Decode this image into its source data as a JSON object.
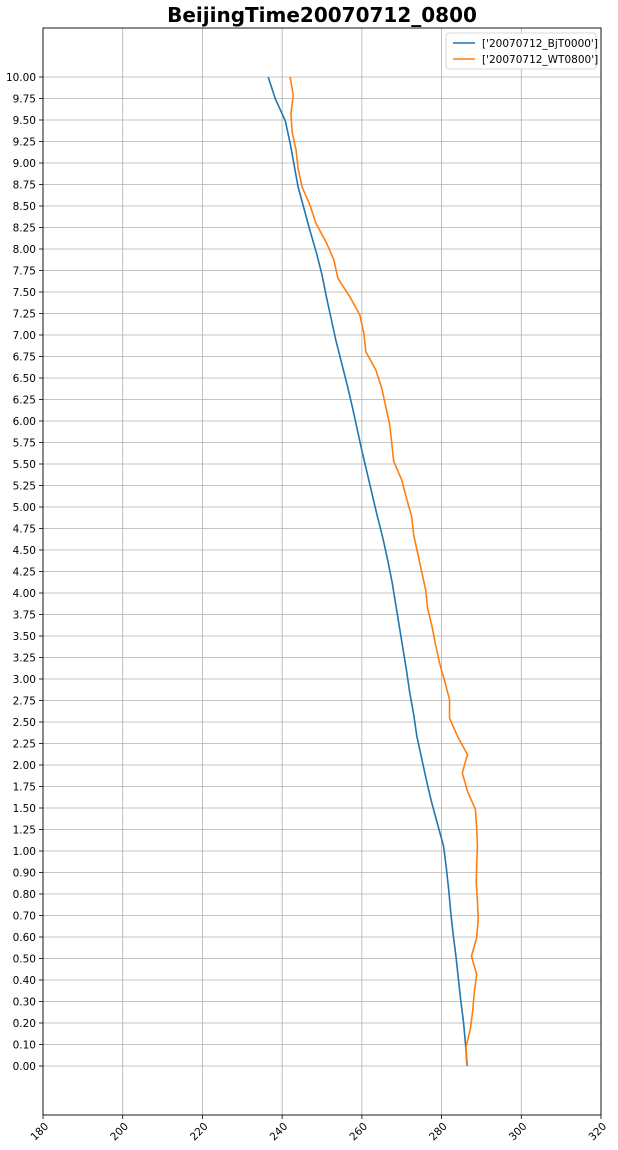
{
  "chart_data": {
    "type": "line",
    "title": "BeijingTime20070712_0800",
    "xlabel": "",
    "ylabel": "",
    "xlim": [
      180,
      320
    ],
    "x_ticks": [
      "180",
      "200",
      "220",
      "240",
      "260",
      "280",
      "300",
      "320"
    ],
    "y_tick_labels": [
      "0.00",
      "0.10",
      "0.20",
      "0.30",
      "0.40",
      "0.50",
      "0.60",
      "0.70",
      "0.80",
      "0.90",
      "1.00",
      "1.25",
      "1.50",
      "1.75",
      "2.00",
      "2.25",
      "2.50",
      "2.75",
      "3.00",
      "3.25",
      "3.50",
      "3.75",
      "4.00",
      "4.25",
      "4.50",
      "4.75",
      "5.00",
      "5.25",
      "5.50",
      "5.75",
      "6.00",
      "6.25",
      "6.50",
      "6.75",
      "7.00",
      "7.25",
      "7.50",
      "7.75",
      "8.00",
      "8.25",
      "8.50",
      "8.75",
      "9.00",
      "9.25",
      "9.50",
      "9.75",
      "10.00"
    ],
    "y_axis_note": "categorical levels, evenly spaced",
    "grid": true,
    "legend_position": "top-right",
    "series": [
      {
        "name": "['20070712_BjT0000']",
        "color": "#1f77b4",
        "x": [
          286.4,
          286.0,
          285.5,
          284.8,
          284.2,
          283.6,
          282.9,
          282.3,
          281.8,
          281.2,
          280.5,
          279.0,
          277.5,
          276.2,
          275.0,
          273.8,
          273.0,
          272.0,
          271.2,
          270.3,
          269.4,
          268.5,
          267.6,
          266.5,
          265.3,
          263.9,
          262.6,
          261.3,
          260.0,
          258.8,
          257.6,
          256.3,
          254.9,
          253.5,
          252.3,
          251.1,
          250.0,
          248.6,
          247.0,
          245.5,
          244.0,
          243.0,
          242.0,
          240.8,
          238.3,
          236.5
        ]
      },
      {
        "name": "['20070712_WT0800']",
        "color": "#ff7f0e",
        "x": [
          286.5,
          286.1,
          287.2,
          287.8,
          288.2,
          288.8,
          287.5,
          288.8,
          289.2,
          289.0,
          288.7,
          288.8,
          289.0,
          288.8,
          288.5,
          286.5,
          285.2,
          286.5,
          284.0,
          282.0,
          282.0,
          280.8,
          279.5,
          278.5,
          277.6,
          276.5,
          276.0,
          275.0,
          274.0,
          273.0,
          272.5,
          271.2,
          270.0,
          268.0,
          267.5,
          267.0,
          266.0,
          265.0,
          263.5,
          261.0,
          260.5,
          259.5,
          257.0,
          254.0,
          253.0,
          251.0,
          248.5,
          247.0,
          245.0,
          244.0,
          243.5,
          242.5,
          242.2,
          242.8,
          242.0
        ]
      }
    ]
  }
}
